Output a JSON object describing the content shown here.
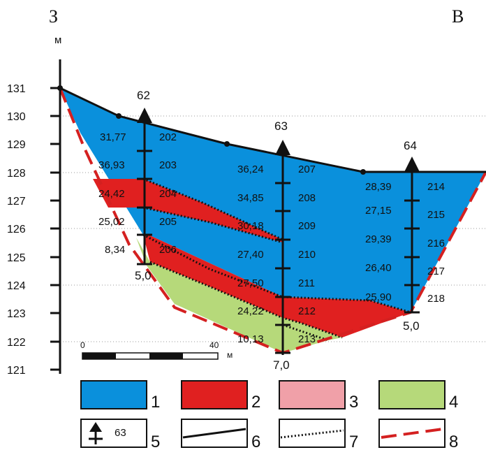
{
  "directions": {
    "west": "З",
    "east": "В"
  },
  "unit_top": "м",
  "axis_ticks": [
    "131",
    "130",
    "129",
    "128",
    "127",
    "126",
    "125",
    "124",
    "123",
    "122",
    "121"
  ],
  "wells": [
    {
      "id": "62",
      "depth": "5,0",
      "samples": [
        "202",
        "203",
        "204",
        "205",
        "206"
      ],
      "values": [
        "31,77",
        "36,93",
        "24,42",
        "25,02",
        "8,34"
      ]
    },
    {
      "id": "63",
      "depth": "7,0",
      "samples": [
        "207",
        "208",
        "209",
        "210",
        "211",
        "212",
        "213"
      ],
      "values": [
        "36,24",
        "34,85",
        "30,18",
        "27,40",
        "27,50",
        "24,22",
        "10,13"
      ]
    },
    {
      "id": "64",
      "depth": "5,0",
      "samples": [
        "214",
        "215",
        "216",
        "217",
        "218"
      ],
      "values": [
        "28,39",
        "27,15",
        "29,39",
        "26,40",
        "25,90"
      ]
    }
  ],
  "scale": {
    "start": "0",
    "end": "40",
    "unit": "м"
  },
  "legend": [
    {
      "num": "1",
      "color": "#0a90dc"
    },
    {
      "num": "2",
      "color": "#e02020"
    },
    {
      "num": "3",
      "color": "#f0a0a8"
    },
    {
      "num": "4",
      "color": "#b6d97a"
    },
    {
      "num": "5",
      "label": "63"
    },
    {
      "num": "6"
    },
    {
      "num": "7"
    },
    {
      "num": "8"
    }
  ],
  "colors": {
    "blue": "#0a90dc",
    "red": "#e02020",
    "pink": "#f0a0a8",
    "green": "#b6d97a",
    "dash": "#d42020"
  }
}
